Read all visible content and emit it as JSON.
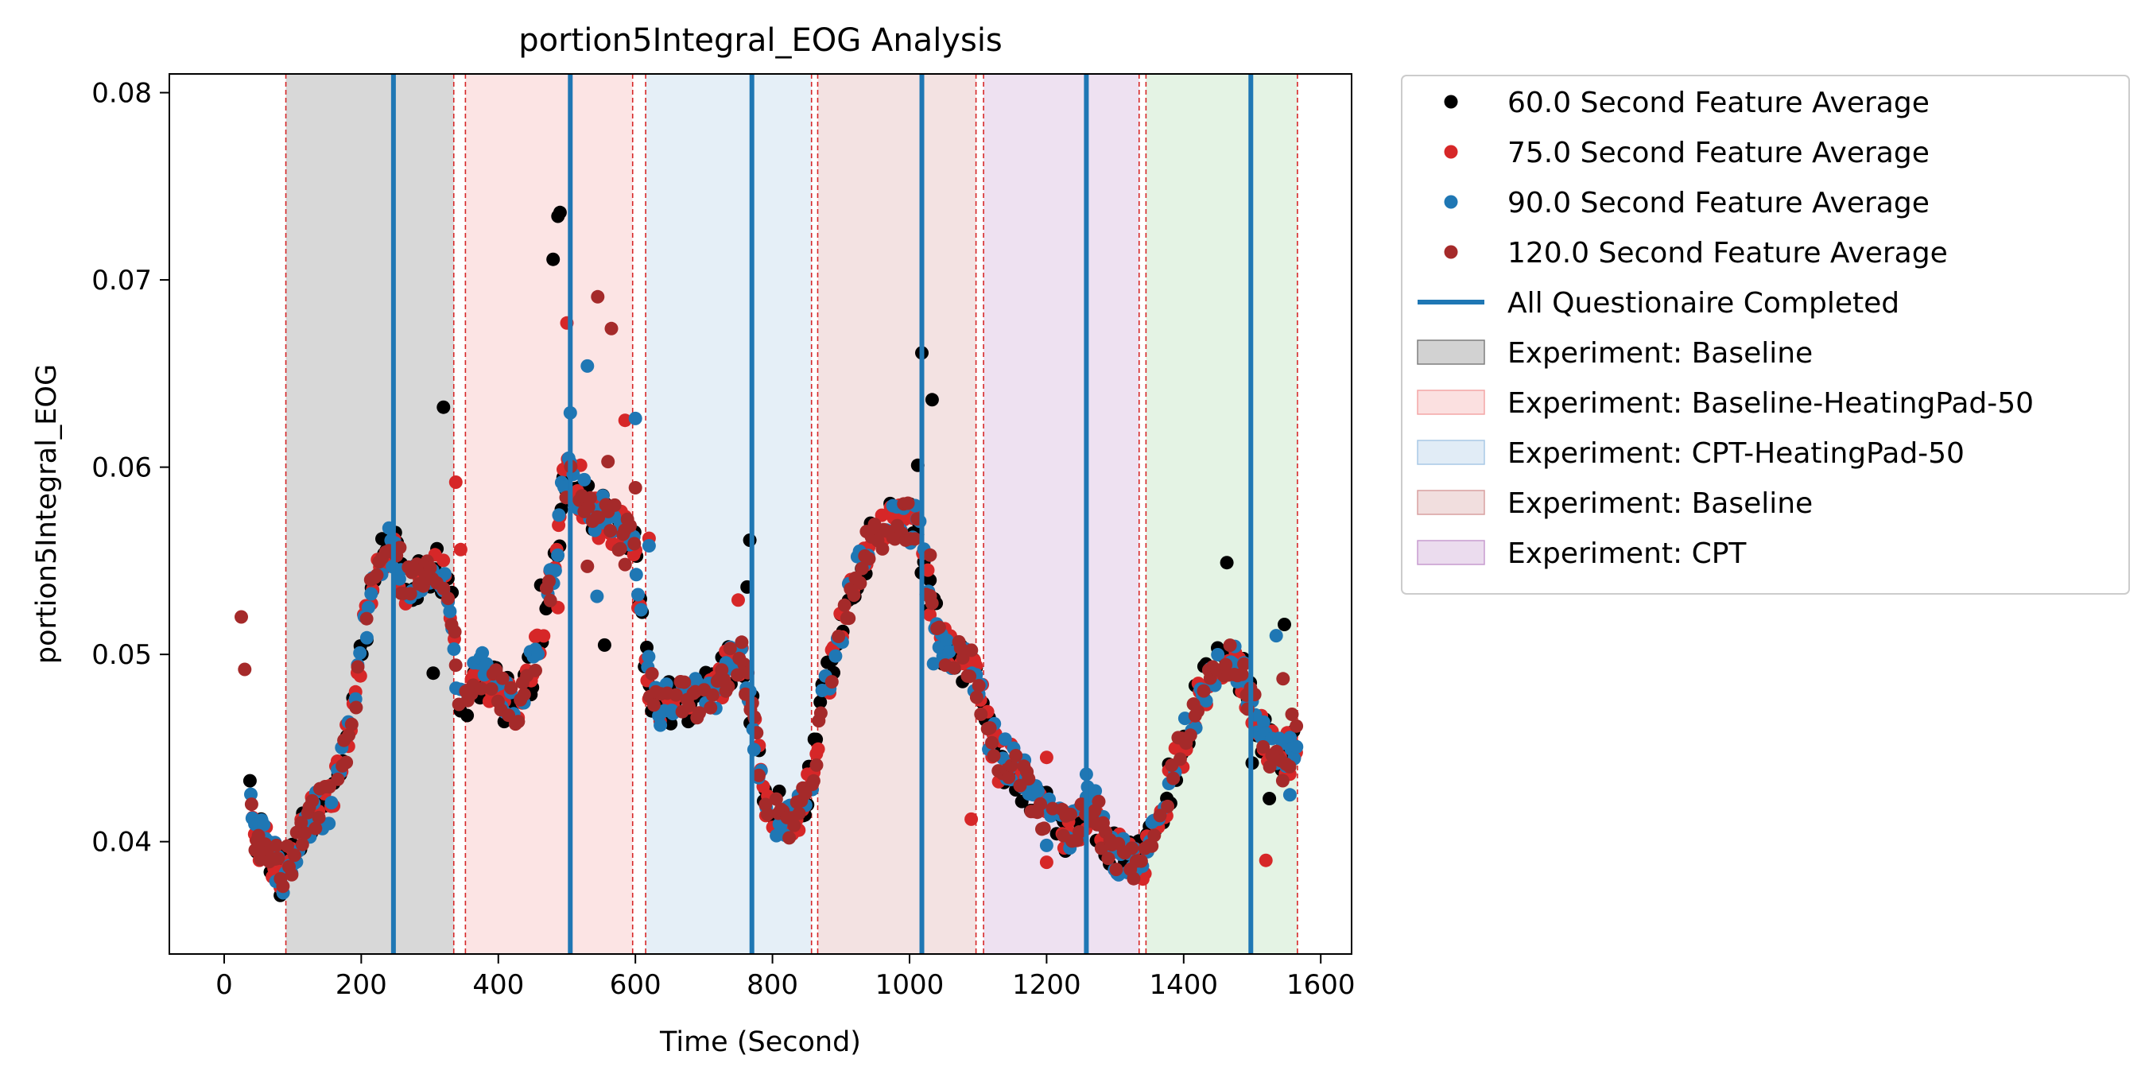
{
  "chart_data": {
    "type": "scatter",
    "title": "portion5Integral_EOG Analysis",
    "xlabel": "Time (Second)",
    "ylabel": "portion5Integral_EOG",
    "xlim": [
      -80,
      1645
    ],
    "ylim": [
      0.034,
      0.081
    ],
    "xticks": [
      0,
      200,
      400,
      600,
      800,
      1000,
      1200,
      1400,
      1600
    ],
    "yticks": [
      0.04,
      0.05,
      0.06,
      0.07,
      0.08
    ],
    "xtick_labels": [
      "0",
      "200",
      "400",
      "600",
      "800",
      "1000",
      "1200",
      "1400",
      "1600"
    ],
    "ytick_labels": [
      "0.04",
      "0.05",
      "0.06",
      "0.07",
      "0.08"
    ],
    "grid": false,
    "legend_position": "outside-right-top",
    "regions": [
      {
        "label": "Experiment: Baseline",
        "start": 90,
        "end": 335,
        "color": "#7f7f7f"
      },
      {
        "label": "Experiment: Baseline-HeatingPad-50",
        "start": 352,
        "end": 596,
        "color": "#f4a6a6"
      },
      {
        "label": "Experiment: CPT-HeatingPad-50",
        "start": 615,
        "end": 857,
        "color": "#a9c9e6"
      },
      {
        "label": "Experiment: Baseline",
        "start": 866,
        "end": 1097,
        "color": "#d8a0a0"
      },
      {
        "label": "Experiment: CPT",
        "start": 1108,
        "end": 1335,
        "color": "#c79bcf"
      },
      {
        "label": "",
        "start": 1345,
        "end": 1566,
        "color": "#a7d8a7"
      }
    ],
    "boundary_lines": [
      90,
      335,
      352,
      596,
      615,
      857,
      866,
      1097,
      1108,
      1335,
      1345,
      1566
    ],
    "questionnaire_lines": {
      "label": "All Questionaire Completed",
      "x": [
        247,
        505,
        770,
        1018,
        1258,
        1498
      ],
      "color": "#1f77b4"
    },
    "anchor_path": [
      [
        25,
        0.052
      ],
      [
        30,
        0.049
      ],
      [
        40,
        0.0405
      ],
      [
        55,
        0.04
      ],
      [
        70,
        0.0392
      ],
      [
        82,
        0.0383
      ],
      [
        95,
        0.0388
      ],
      [
        110,
        0.0402
      ],
      [
        125,
        0.0412
      ],
      [
        140,
        0.0418
      ],
      [
        158,
        0.0422
      ],
      [
        175,
        0.0445
      ],
      [
        192,
        0.0478
      ],
      [
        208,
        0.052
      ],
      [
        222,
        0.0548
      ],
      [
        238,
        0.056
      ],
      [
        250,
        0.0555
      ],
      [
        265,
        0.0535
      ],
      [
        280,
        0.0538
      ],
      [
        300,
        0.0543
      ],
      [
        318,
        0.0545
      ],
      [
        333,
        0.052
      ],
      [
        342,
        0.0478
      ],
      [
        352,
        0.0475
      ],
      [
        365,
        0.0485
      ],
      [
        380,
        0.049
      ],
      [
        395,
        0.0482
      ],
      [
        410,
        0.0476
      ],
      [
        425,
        0.0468
      ],
      [
        440,
        0.0482
      ],
      [
        455,
        0.05
      ],
      [
        470,
        0.0525
      ],
      [
        485,
        0.0555
      ],
      [
        495,
        0.059
      ],
      [
        505,
        0.0595
      ],
      [
        520,
        0.0585
      ],
      [
        540,
        0.0575
      ],
      [
        560,
        0.0572
      ],
      [
        580,
        0.0565
      ],
      [
        592,
        0.056
      ],
      [
        600,
        0.0555
      ],
      [
        612,
        0.0505
      ],
      [
        625,
        0.0478
      ],
      [
        640,
        0.0472
      ],
      [
        660,
        0.0474
      ],
      [
        680,
        0.0476
      ],
      [
        700,
        0.0478
      ],
      [
        720,
        0.0484
      ],
      [
        740,
        0.0494
      ],
      [
        755,
        0.0502
      ],
      [
        765,
        0.0482
      ],
      [
        775,
        0.0455
      ],
      [
        788,
        0.0425
      ],
      [
        805,
        0.0415
      ],
      [
        825,
        0.0412
      ],
      [
        845,
        0.0418
      ],
      [
        858,
        0.0438
      ],
      [
        870,
        0.0465
      ],
      [
        885,
        0.0495
      ],
      [
        900,
        0.0515
      ],
      [
        918,
        0.0535
      ],
      [
        935,
        0.0555
      ],
      [
        955,
        0.0565
      ],
      [
        975,
        0.0568
      ],
      [
        995,
        0.0572
      ],
      [
        1012,
        0.0568
      ],
      [
        1022,
        0.0545
      ],
      [
        1035,
        0.052
      ],
      [
        1055,
        0.0503
      ],
      [
        1075,
        0.0498
      ],
      [
        1092,
        0.0493
      ],
      [
        1105,
        0.0475
      ],
      [
        1118,
        0.0455
      ],
      [
        1135,
        0.0445
      ],
      [
        1155,
        0.0438
      ],
      [
        1175,
        0.0428
      ],
      [
        1195,
        0.0415
      ],
      [
        1215,
        0.0408
      ],
      [
        1235,
        0.0405
      ],
      [
        1252,
        0.0412
      ],
      [
        1262,
        0.0422
      ],
      [
        1275,
        0.0412
      ],
      [
        1290,
        0.0396
      ],
      [
        1305,
        0.0392
      ],
      [
        1320,
        0.039
      ],
      [
        1335,
        0.0392
      ],
      [
        1345,
        0.0392
      ],
      [
        1358,
        0.0405
      ],
      [
        1375,
        0.0425
      ],
      [
        1392,
        0.0445
      ],
      [
        1410,
        0.0465
      ],
      [
        1428,
        0.048
      ],
      [
        1445,
        0.0492
      ],
      [
        1462,
        0.0498
      ],
      [
        1478,
        0.0496
      ],
      [
        1495,
        0.0478
      ],
      [
        1512,
        0.0462
      ],
      [
        1528,
        0.0448
      ],
      [
        1542,
        0.0442
      ],
      [
        1555,
        0.0448
      ],
      [
        1565,
        0.0455
      ]
    ],
    "series": [
      {
        "name": "60.0 Second Feature Average",
        "color": "#000000",
        "seed": 11,
        "jitter": 0.0013,
        "outliers": [
          [
            320,
            0.0632
          ],
          [
            480,
            0.0711
          ],
          [
            487,
            0.0734
          ],
          [
            490,
            0.0736
          ],
          [
            462,
            0.0537
          ],
          [
            555,
            0.0505
          ],
          [
            767,
            0.0561
          ],
          [
            763,
            0.0536
          ],
          [
            1012,
            0.0601
          ],
          [
            1018,
            0.0661
          ],
          [
            1033,
            0.0636
          ],
          [
            1463,
            0.0549
          ],
          [
            1500,
            0.0442
          ],
          [
            1547,
            0.0516
          ],
          [
            1525,
            0.0423
          ],
          [
            305,
            0.049
          ]
        ]
      },
      {
        "name": "75.0 Second Feature Average",
        "color": "#d62728",
        "seed": 23,
        "jitter": 0.0012,
        "outliers": [
          [
            338,
            0.0592
          ],
          [
            345,
            0.0556
          ],
          [
            488,
            0.0569
          ],
          [
            500,
            0.0677
          ],
          [
            520,
            0.0601
          ],
          [
            585,
            0.0625
          ],
          [
            620,
            0.0562
          ],
          [
            1200,
            0.0445
          ],
          [
            1200,
            0.0389
          ],
          [
            1520,
            0.039
          ],
          [
            1545,
            0.0453
          ],
          [
            1090,
            0.0412
          ],
          [
            487,
            0.0525
          ],
          [
            750,
            0.0529
          ],
          [
            1130,
            0.0432
          ]
        ]
      },
      {
        "name": "90.0 Second Feature Average",
        "color": "#1f77b4",
        "seed": 37,
        "jitter": 0.0012,
        "outliers": [
          [
            505,
            0.0629
          ],
          [
            530,
            0.0654
          ],
          [
            600,
            0.0626
          ],
          [
            544,
            0.0531
          ],
          [
            1035,
            0.0495
          ],
          [
            1500,
            0.0475
          ],
          [
            1555,
            0.0425
          ],
          [
            1535,
            0.051
          ],
          [
            1165,
            0.0429
          ],
          [
            1258,
            0.0436
          ],
          [
            1200,
            0.0398
          ],
          [
            620,
            0.0558
          ]
        ]
      },
      {
        "name": "120.0 Second Feature Average",
        "color": "#a52a2a",
        "seed": 53,
        "jitter": 0.0011,
        "outliers": [
          [
            25,
            0.052
          ],
          [
            30,
            0.0492
          ],
          [
            40,
            0.042
          ],
          [
            545,
            0.0691
          ],
          [
            565,
            0.0674
          ],
          [
            560,
            0.0603
          ],
          [
            530,
            0.0547
          ],
          [
            600,
            0.0589
          ],
          [
            585,
            0.0548
          ],
          [
            1030,
            0.0553
          ],
          [
            1545,
            0.0487
          ],
          [
            1558,
            0.0468
          ]
        ]
      }
    ]
  }
}
